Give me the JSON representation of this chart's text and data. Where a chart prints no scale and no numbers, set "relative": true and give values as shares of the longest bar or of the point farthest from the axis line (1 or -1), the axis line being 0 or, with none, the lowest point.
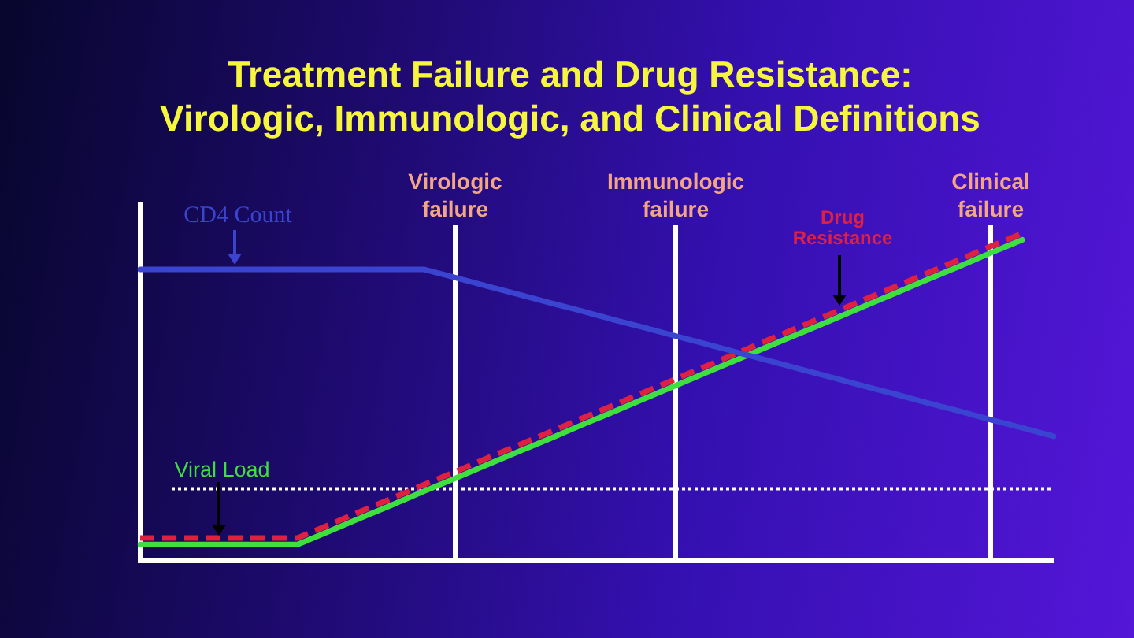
{
  "chart_data": {
    "type": "line",
    "title": "Treatment Failure and Drug Resistance: Virologic, Immunologic, and Clinical Definitions",
    "relative": true,
    "tick_labels": "x",
    "marker": "none",
    "categories": [
      null,
      null,
      null,
      null,
      null,
      null,
      null,
      null,
      null,
      null,
      "Virologic failure",
      null,
      null,
      null,
      null,
      null,
      null,
      "Immunologic failure",
      null,
      null,
      null,
      null,
      null,
      null,
      null,
      null,
      null,
      "Clinical failure",
      null,
      null
    ],
    "series": [
      {
        "name": "CD4 Count",
        "color": "#3a44d0",
        "values": [
          0.89,
          0.89,
          0.89,
          0.89,
          0.89,
          0.89,
          0.89,
          0.89,
          0.89,
          0.89,
          0.865,
          0.839,
          0.814,
          0.788,
          0.763,
          0.737,
          0.712,
          0.686,
          0.661,
          0.635,
          0.61,
          0.584,
          0.559,
          0.533,
          0.508,
          0.482,
          0.457,
          0.431,
          0.406,
          0.38
        ]
      },
      {
        "name": "Viral Load",
        "color": "#3ee03e",
        "values": [
          0.05,
          0.05,
          0.05,
          0.05,
          0.05,
          0.05,
          0.09,
          0.131,
          0.171,
          0.212,
          0.252,
          0.293,
          0.333,
          0.373,
          0.414,
          0.454,
          0.495,
          0.535,
          0.576,
          0.616,
          0.657,
          0.697,
          0.737,
          0.778,
          0.818,
          0.859,
          0.899,
          0.94,
          0.98,
          null
        ]
      },
      {
        "name": "Drug Resistance",
        "color": "#e02040",
        "line_style": "dashed",
        "values": [
          0.07,
          0.07,
          0.07,
          0.07,
          0.07,
          0.07,
          0.11,
          0.151,
          0.191,
          0.232,
          0.272,
          0.313,
          0.353,
          0.393,
          0.434,
          0.474,
          0.515,
          0.555,
          0.596,
          0.636,
          0.677,
          0.717,
          0.757,
          0.798,
          0.838,
          0.879,
          0.919,
          0.96,
          1,
          null
        ]
      },
      {
        "color": "#ffffff",
        "line_style": "dotted",
        "values": [
          null,
          0.22,
          0.22,
          0.22,
          0.22,
          0.22,
          0.22,
          0.22,
          0.22,
          0.22,
          0.22,
          0.22,
          0.22,
          0.22,
          0.22,
          0.22,
          0.22,
          0.22,
          0.22,
          0.22,
          0.22,
          0.22,
          0.22,
          0.22,
          0.22,
          0.22,
          0.22,
          0.22,
          0.22,
          0.22
        ]
      }
    ],
    "ref_lines": [
      {
        "axis": "x",
        "value": "Virologic failure",
        "color": "#ffffff"
      },
      {
        "axis": "x",
        "value": "Immunologic failure",
        "color": "#ffffff"
      },
      {
        "axis": "x",
        "value": "Clinical failure",
        "color": "#ffffff"
      }
    ]
  }
}
